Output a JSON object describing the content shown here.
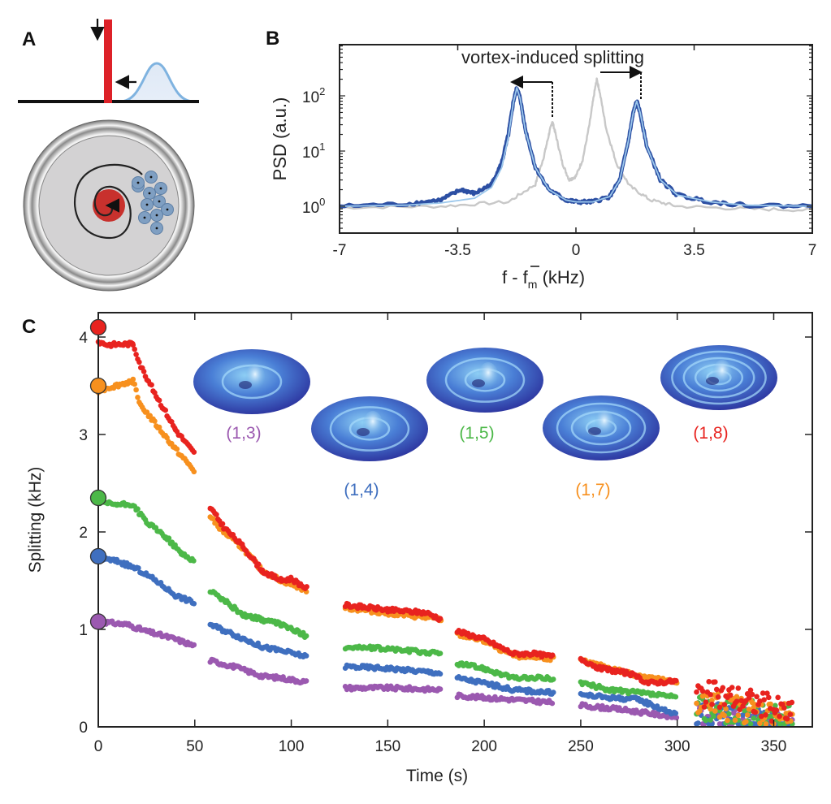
{
  "panels": {
    "a": "A",
    "b": "B",
    "c": "C"
  },
  "colors": {
    "red": "#e8231f",
    "orange": "#f7901e",
    "green": "#4cb848",
    "blue": "#3f6fbf",
    "purple": "#9b59b0",
    "psd_data": "#2c4fa3",
    "psd_fit": "#9cc8ec",
    "psd_ref": "#c8c8c8"
  },
  "chart_data": [
    {
      "panel": "B",
      "type": "line",
      "xlabel_main": "f - f",
      "xlabel_sub": "m",
      "xlabel_unit": " (kHz)",
      "ylabel": "PSD (a.u.)",
      "annotation": "vortex-induced splitting",
      "xlim": [
        -7,
        7
      ],
      "ylim": [
        0.32,
        800
      ],
      "yscale": "log",
      "xticks": [
        "-7",
        "-3.5",
        "0",
        "3.5",
        "7"
      ],
      "xtick_values": [
        -7,
        -3.5,
        0,
        3.5,
        7
      ],
      "yticks": [
        {
          "base": "10",
          "exp": "0",
          "value": 1
        },
        {
          "base": "10",
          "exp": "1",
          "value": 10
        },
        {
          "base": "10",
          "exp": "2",
          "value": 100
        }
      ],
      "series": [
        {
          "key": "reference",
          "color": "#c8c8c8",
          "x": [
            -7,
            -4,
            -2,
            -1.2,
            -0.95,
            -0.8,
            -0.7,
            -0.6,
            -0.4,
            -0.2,
            0,
            0.2,
            0.4,
            0.55,
            0.62,
            0.7,
            0.9,
            1.2,
            1.6,
            2.2,
            3,
            5,
            7
          ],
          "y": [
            0.95,
            1.0,
            1.2,
            2.5,
            8,
            20,
            35,
            20,
            6,
            3.0,
            3.5,
            7,
            30,
            120,
            200,
            120,
            25,
            6,
            2.3,
            1.3,
            1.0,
            0.9,
            0.85
          ]
        },
        {
          "key": "data",
          "color": "#2c4fa3",
          "x": [
            -7,
            -5,
            -4,
            -3.4,
            -3,
            -2.5,
            -2.2,
            -2,
            -1.85,
            -1.75,
            -1.65,
            -1.5,
            -1.2,
            -0.8,
            -0.3,
            0,
            0.5,
            1,
            1.3,
            1.55,
            1.7,
            1.8,
            1.9,
            2.1,
            2.5,
            3,
            4,
            5,
            7
          ],
          "y": [
            1.0,
            1.1,
            1.3,
            2.0,
            1.7,
            2.5,
            6,
            20,
            80,
            140,
            90,
            25,
            5,
            2,
            1.3,
            1.2,
            1.2,
            1.5,
            3,
            15,
            50,
            80,
            50,
            12,
            3,
            1.6,
            1.2,
            1.05,
            1.0
          ]
        },
        {
          "key": "fit",
          "color": "#9cc8ec",
          "x": [
            -7,
            -5,
            -4,
            -3,
            -2.5,
            -2.2,
            -2,
            -1.85,
            -1.75,
            -1.65,
            -1.5,
            -1.2,
            -0.8,
            -0.3,
            0,
            0.5,
            1,
            1.3,
            1.55,
            1.7,
            1.8,
            1.9,
            2.1,
            2.5,
            3,
            4,
            5,
            7
          ],
          "y": [
            1.0,
            1.05,
            1.15,
            1.4,
            2.2,
            5,
            18,
            78,
            140,
            88,
            24,
            5,
            2,
            1.3,
            1.2,
            1.2,
            1.5,
            3,
            15,
            50,
            80,
            50,
            12,
            3,
            1.6,
            1.2,
            1.05,
            1.0
          ]
        }
      ]
    },
    {
      "panel": "C",
      "type": "scatter",
      "xlabel": "Time (s)",
      "ylabel": "Splitting (kHz)",
      "xlim": [
        0,
        370
      ],
      "ylim": [
        0,
        4.25
      ],
      "xticks": [
        "0",
        "50",
        "100",
        "150",
        "200",
        "250",
        "300",
        "350"
      ],
      "xtick_values": [
        0,
        50,
        100,
        150,
        200,
        250,
        300,
        350
      ],
      "yticks": [
        "0",
        "1",
        "2",
        "3",
        "4"
      ],
      "ytick_values": [
        0,
        1,
        2,
        3,
        4
      ],
      "series": [
        {
          "mode": "(1,8)",
          "color": "#e8231f",
          "initial": 4.1,
          "segments": [
            [
              [
                0,
                3.95
              ],
              [
                5,
                3.92
              ],
              [
                18,
                3.93
              ],
              [
                22,
                3.7
              ],
              [
                30,
                3.4
              ],
              [
                40,
                3.05
              ],
              [
                50,
                2.8
              ]
            ],
            [
              [
                58,
                2.25
              ],
              [
                65,
                2.05
              ],
              [
                75,
                1.85
              ],
              [
                85,
                1.6
              ],
              [
                95,
                1.5
              ],
              [
                100,
                1.52
              ],
              [
                108,
                1.42
              ]
            ],
            [
              [
                128,
                1.25
              ],
              [
                150,
                1.2
              ],
              [
                170,
                1.17
              ],
              [
                178,
                1.1
              ]
            ],
            [
              [
                186,
                0.98
              ],
              [
                200,
                0.9
              ],
              [
                215,
                0.75
              ],
              [
                225,
                0.75
              ],
              [
                236,
                0.72
              ]
            ],
            [
              [
                250,
                0.7
              ],
              [
                260,
                0.6
              ],
              [
                275,
                0.55
              ],
              [
                285,
                0.45
              ],
              [
                300,
                0.47
              ]
            ],
            [
              [
                310,
                0.35
              ],
              [
                330,
                0.3
              ],
              [
                345,
                0.22
              ],
              [
                360,
                0.12
              ]
            ]
          ]
        },
        {
          "mode": "(1,7)",
          "color": "#f7901e",
          "initial": 3.5,
          "segments": [
            [
              [
                0,
                3.45
              ],
              [
                18,
                3.55
              ],
              [
                22,
                3.3
              ],
              [
                30,
                3.1
              ],
              [
                40,
                2.85
              ],
              [
                50,
                2.62
              ]
            ],
            [
              [
                58,
                2.15
              ],
              [
                65,
                2.0
              ],
              [
                75,
                1.83
              ],
              [
                85,
                1.6
              ],
              [
                95,
                1.5
              ],
              [
                108,
                1.4
              ]
            ],
            [
              [
                128,
                1.22
              ],
              [
                178,
                1.1
              ]
            ],
            [
              [
                186,
                0.95
              ],
              [
                200,
                0.88
              ],
              [
                215,
                0.73
              ],
              [
                236,
                0.7
              ]
            ],
            [
              [
                250,
                0.68
              ],
              [
                275,
                0.55
              ],
              [
                300,
                0.45
              ]
            ],
            [
              [
                310,
                0.25
              ],
              [
                360,
                0.1
              ]
            ]
          ]
        },
        {
          "mode": "(1,5)",
          "color": "#4cb848",
          "initial": 2.35,
          "segments": [
            [
              [
                0,
                2.3
              ],
              [
                10,
                2.28
              ],
              [
                18,
                2.28
              ],
              [
                25,
                2.1
              ],
              [
                35,
                1.95
              ],
              [
                43,
                1.78
              ],
              [
                50,
                1.7
              ]
            ],
            [
              [
                58,
                1.4
              ],
              [
                65,
                1.3
              ],
              [
                75,
                1.15
              ],
              [
                85,
                1.1
              ],
              [
                95,
                1.05
              ],
              [
                108,
                0.93
              ]
            ],
            [
              [
                128,
                0.82
              ],
              [
                150,
                0.8
              ],
              [
                178,
                0.75
              ]
            ],
            [
              [
                186,
                0.65
              ],
              [
                200,
                0.6
              ],
              [
                215,
                0.5
              ],
              [
                236,
                0.5
              ]
            ],
            [
              [
                250,
                0.45
              ],
              [
                265,
                0.38
              ],
              [
                280,
                0.35
              ],
              [
                300,
                0.3
              ]
            ],
            [
              [
                310,
                0.2
              ],
              [
                360,
                0.08
              ]
            ]
          ]
        },
        {
          "mode": "(1,4)",
          "color": "#3f6fbf",
          "initial": 1.75,
          "segments": [
            [
              [
                0,
                1.73
              ],
              [
                10,
                1.7
              ],
              [
                20,
                1.62
              ],
              [
                30,
                1.5
              ],
              [
                40,
                1.35
              ],
              [
                50,
                1.27
              ]
            ],
            [
              [
                58,
                1.05
              ],
              [
                70,
                0.95
              ],
              [
                85,
                0.82
              ],
              [
                95,
                0.78
              ],
              [
                108,
                0.72
              ]
            ],
            [
              [
                128,
                0.62
              ],
              [
                150,
                0.6
              ],
              [
                178,
                0.55
              ]
            ],
            [
              [
                186,
                0.5
              ],
              [
                200,
                0.45
              ],
              [
                215,
                0.38
              ],
              [
                236,
                0.35
              ]
            ],
            [
              [
                250,
                0.33
              ],
              [
                265,
                0.3
              ],
              [
                280,
                0.28
              ],
              [
                300,
                0.12
              ]
            ],
            [
              [
                310,
                0.12
              ],
              [
                360,
                0.05
              ]
            ]
          ]
        },
        {
          "mode": "(1,3)",
          "color": "#9b59b0",
          "initial": 1.08,
          "segments": [
            [
              [
                0,
                1.08
              ],
              [
                15,
                1.05
              ],
              [
                25,
                0.98
              ],
              [
                40,
                0.9
              ],
              [
                50,
                0.83
              ]
            ],
            [
              [
                58,
                0.68
              ],
              [
                70,
                0.62
              ],
              [
                85,
                0.52
              ],
              [
                95,
                0.5
              ],
              [
                108,
                0.46
              ]
            ],
            [
              [
                128,
                0.4
              ],
              [
                150,
                0.4
              ],
              [
                178,
                0.38
              ]
            ],
            [
              [
                186,
                0.32
              ],
              [
                200,
                0.3
              ],
              [
                236,
                0.25
              ]
            ],
            [
              [
                250,
                0.22
              ],
              [
                270,
                0.18
              ],
              [
                300,
                0.1
              ]
            ],
            [
              [
                310,
                0.1
              ],
              [
                360,
                0.03
              ]
            ]
          ]
        }
      ]
    }
  ],
  "insets": [
    {
      "label": "(1,3)",
      "rings": 1,
      "color": "#9b59b0"
    },
    {
      "label": "(1,4)",
      "rings": 2,
      "color": "#3f6fbf"
    },
    {
      "label": "(1,5)",
      "rings": 2,
      "color": "#4cb848"
    },
    {
      "label": "(1,7)",
      "rings": 3,
      "color": "#f7901e"
    },
    {
      "label": "(1,8)",
      "rings": 4,
      "color": "#e8231f"
    }
  ]
}
